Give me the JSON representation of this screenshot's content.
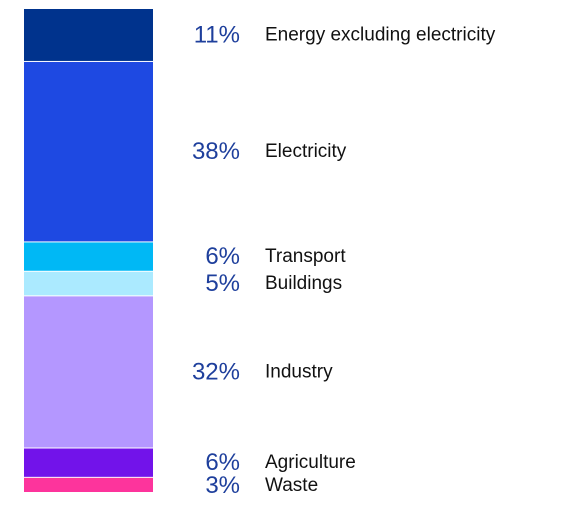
{
  "chart_data": {
    "type": "bar",
    "stacked": true,
    "orientation": "vertical",
    "unit": "%",
    "categories": [
      "Energy excluding electricity",
      "Electricity",
      "Transport",
      "Buildings",
      "Industry",
      "Agriculture",
      "Waste"
    ],
    "values": [
      11,
      38,
      6,
      5,
      32,
      6,
      3
    ],
    "value_labels": [
      "11%",
      "38%",
      "6%",
      "5%",
      "32%",
      "6%",
      "3%"
    ],
    "colors": [
      "#00338d",
      "#1e49e2",
      "#00b8f5",
      "#abeaff",
      "#b497ff",
      "#7213ea",
      "#fd349c"
    ],
    "title": "",
    "xlabel": "",
    "ylabel": "",
    "grid": false,
    "legend": "labels beside segments"
  }
}
